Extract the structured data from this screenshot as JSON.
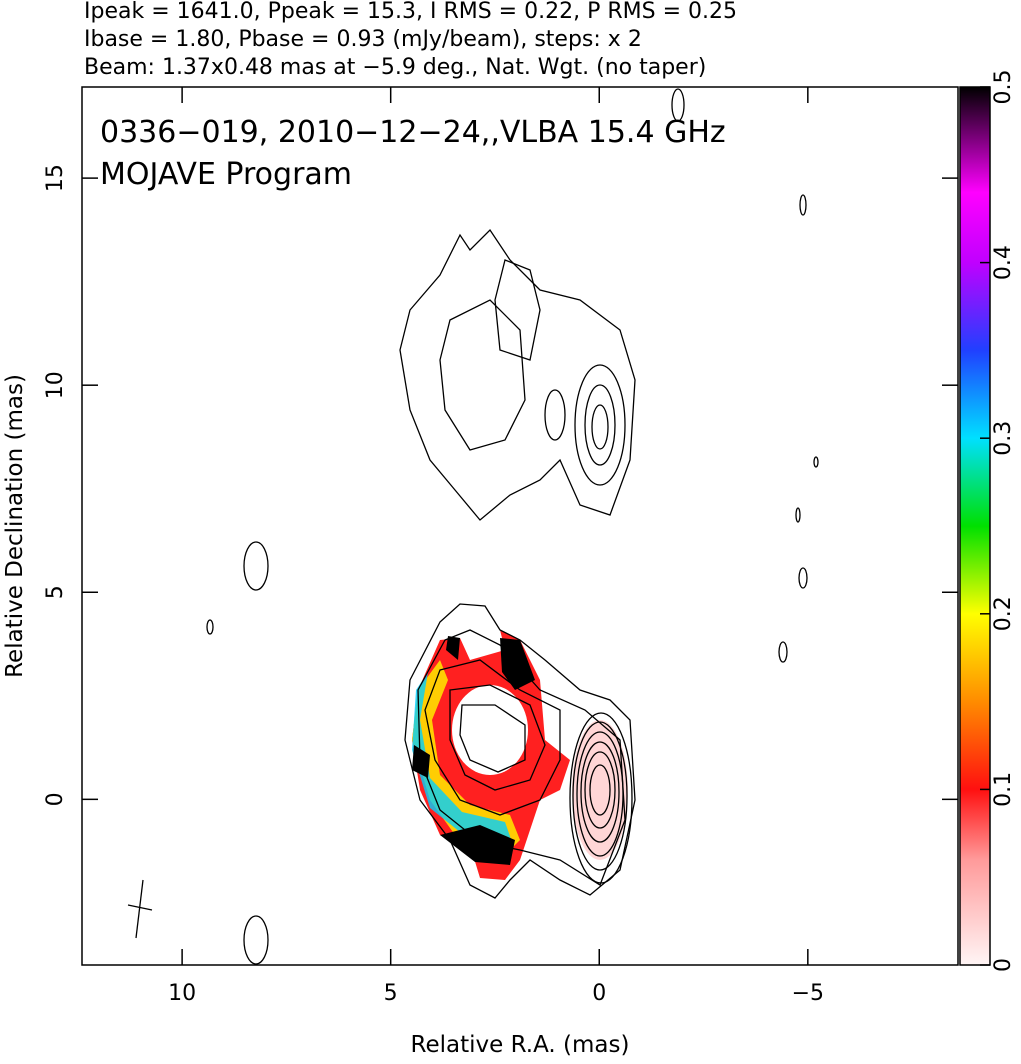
{
  "chart_data": {
    "type": "contour",
    "header": [
      "Ipeak = 1641.0, Ppeak = 15.3, I RMS = 0.22, P RMS = 0.25",
      "Ibase = 1.80, Pbase = 0.93 (mJy/beam), steps: x 2",
      "Beam: 1.37x0.48 mas at −5.9 deg., Nat. Wgt. (no taper)"
    ],
    "annotations": [
      "0336−019, 2010−12−24,,VLBA 15.4 GHz",
      "MOJAVE Program"
    ],
    "xlabel": "Relative R.A. (mas)",
    "ylabel": "Relative Declination (mas)",
    "xlim": [
      12.4,
      -8.6
    ],
    "xticks": [
      10,
      5,
      0,
      {
        "value": -5,
        "label": "−5"
      }
    ],
    "ylim": [
      -4.0,
      17.2
    ],
    "yticks": [
      0,
      5,
      10,
      15
    ],
    "colorbar": {
      "lim": [
        0,
        0.5
      ],
      "ticks": [
        0,
        0.1,
        0.2,
        0.3,
        0.4,
        0.5
      ]
    }
  }
}
